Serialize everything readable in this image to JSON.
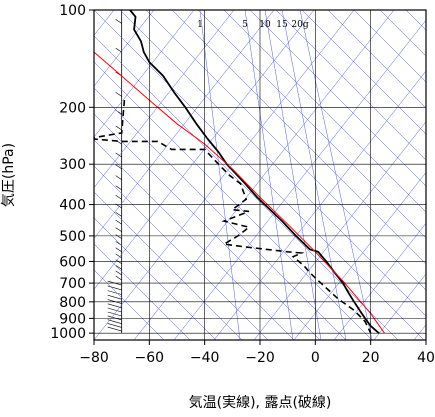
{
  "chart_data": {
    "type": "line",
    "title": "",
    "xlabel": "気温(実線), 露点(破線)",
    "ylabel": "気圧(hPa)",
    "x_ticks": [
      "−80",
      "−60",
      "−40",
      "−20",
      "0",
      "20",
      "40"
    ],
    "y_ticks": [
      "100",
      "200",
      "300",
      "400",
      "500",
      "600",
      "700",
      "800",
      "900",
      "1000"
    ],
    "mixing_ratio_labels": [
      "1",
      "5",
      "10",
      "15",
      "20g"
    ],
    "xlim": [
      -80,
      40
    ],
    "ylim": [
      1050,
      100
    ],
    "y_scale": "log",
    "grid": true,
    "series": [
      {
        "name": "気温(実線)",
        "style": "solid",
        "color": "#000000",
        "points": [
          [
            -67,
            100
          ],
          [
            -65,
            105
          ],
          [
            -65.5,
            115
          ],
          [
            -63,
            125
          ],
          [
            -62,
            135
          ],
          [
            -60,
            145
          ],
          [
            -55,
            160
          ],
          [
            -51,
            180
          ],
          [
            -47,
            200
          ],
          [
            -43,
            225
          ],
          [
            -39,
            250
          ],
          [
            -35,
            275
          ],
          [
            -32,
            300
          ],
          [
            -26,
            340
          ],
          [
            -21,
            380
          ],
          [
            -17,
            410
          ],
          [
            -12,
            450
          ],
          [
            -7,
            500
          ],
          [
            -2,
            550
          ],
          [
            1,
            560
          ],
          [
            4,
            600
          ],
          [
            7,
            650
          ],
          [
            10,
            700
          ],
          [
            12,
            750
          ],
          [
            14,
            800
          ],
          [
            16,
            850
          ],
          [
            18,
            900
          ],
          [
            20,
            950
          ],
          [
            23,
            1000
          ]
        ]
      },
      {
        "name": "露点(破線)",
        "style": "dashed",
        "color": "#000000",
        "points": [
          [
            -69,
            190
          ],
          [
            -70,
            240
          ],
          [
            -82,
            250
          ],
          [
            -70,
            255
          ],
          [
            -57,
            255
          ],
          [
            -52,
            270
          ],
          [
            -40,
            270
          ],
          [
            -35,
            300
          ],
          [
            -31,
            325
          ],
          [
            -27,
            345
          ],
          [
            -26,
            365
          ],
          [
            -25,
            385
          ],
          [
            -30,
            415
          ],
          [
            -24,
            420
          ],
          [
            -33,
            450
          ],
          [
            -24,
            470
          ],
          [
            -28,
            500
          ],
          [
            -33,
            530
          ],
          [
            -26,
            540
          ],
          [
            -10,
            560
          ],
          [
            -5,
            565
          ],
          [
            -8,
            580
          ],
          [
            -4,
            620
          ],
          [
            -2,
            650
          ],
          [
            2,
            700
          ],
          [
            8,
            780
          ],
          [
            14,
            850
          ],
          [
            18,
            920
          ],
          [
            20,
            1000
          ]
        ]
      },
      {
        "name": "",
        "style": "solid",
        "color": "#ff0000",
        "points": [
          [
            -80,
            135
          ],
          [
            -70,
            160
          ],
          [
            -60,
            190
          ],
          [
            -50,
            225
          ],
          [
            -40,
            260
          ],
          [
            -30,
            310
          ],
          [
            -20,
            380
          ],
          [
            -10,
            460
          ],
          [
            0,
            560
          ],
          [
            10,
            690
          ],
          [
            20,
            870
          ],
          [
            25,
            1000
          ]
        ]
      }
    ]
  }
}
